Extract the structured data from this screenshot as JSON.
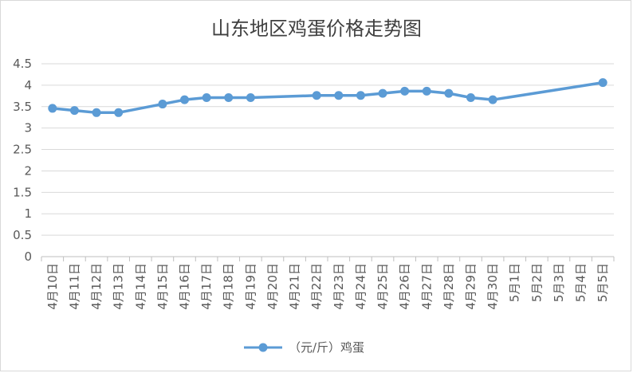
{
  "chart_data": {
    "type": "line",
    "title": "山东地区鸡蛋价格走势图",
    "xlabel": "",
    "ylabel": "",
    "ylim": [
      0,
      4.5
    ],
    "yticks": [
      "0",
      "0.5",
      "1",
      "1.5",
      "2",
      "2.5",
      "3",
      "3.5",
      "4",
      "4.5"
    ],
    "categories": [
      "4月10日",
      "4月11日",
      "4月12日",
      "4月13日",
      "4月14日",
      "4月15日",
      "4月16日",
      "4月17日",
      "4月18日",
      "4月19日",
      "4月20日",
      "4月21日",
      "4月22日",
      "4月23日",
      "4月24日",
      "4月25日",
      "4月26日",
      "4月27日",
      "4月28日",
      "4月29日",
      "4月30日",
      "5月1日",
      "5月2日",
      "5月3日",
      "5月4日",
      "5月5日"
    ],
    "series": [
      {
        "name": "（元/斤）鸡蛋",
        "color": "#5b9bd5",
        "values": [
          3.46,
          3.41,
          3.36,
          3.36,
          null,
          3.56,
          3.66,
          3.71,
          3.71,
          3.71,
          null,
          null,
          3.76,
          3.76,
          3.76,
          3.81,
          3.86,
          3.86,
          3.81,
          3.71,
          3.66,
          null,
          null,
          null,
          null,
          4.06
        ]
      }
    ],
    "grid": true,
    "legend": "bottom"
  }
}
